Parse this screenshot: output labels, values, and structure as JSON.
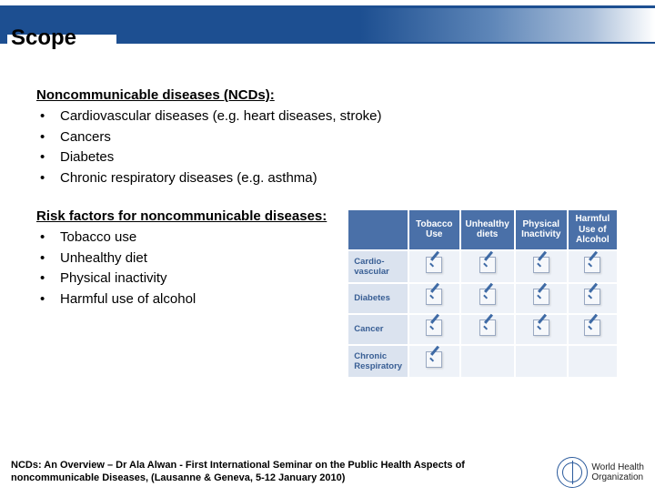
{
  "title": "Scope",
  "sections": {
    "ncds": {
      "heading": "Noncommunicable diseases (NCDs):",
      "items": [
        "Cardiovascular diseases (e.g. heart diseases, stroke)",
        "Cancers",
        "Diabetes",
        "Chronic respiratory diseases (e.g. asthma)"
      ]
    },
    "risk": {
      "heading": "Risk factors for noncommunicable diseases:",
      "items": [
        "Tobacco use",
        "Unhealthy diet",
        "Physical inactivity",
        "Harmful use of alcohol"
      ]
    }
  },
  "matrix": {
    "columns": [
      "Tobacco Use",
      "Unhealthy diets",
      "Physical Inactivity",
      "Harmful Use of Alcohol"
    ],
    "rows": [
      "Cardio-vascular",
      "Diabetes",
      "Cancer",
      "Chronic Respiratory"
    ],
    "cells": [
      [
        true,
        true,
        true,
        true
      ],
      [
        true,
        true,
        true,
        true
      ],
      [
        true,
        true,
        true,
        true
      ],
      [
        true,
        false,
        false,
        false
      ]
    ],
    "header_bg": "#4a70a8",
    "header_fg": "#ffffff",
    "rowhead_bg": "#dbe3ef",
    "rowhead_fg": "#385e94",
    "cell_bg": "#eef2f8",
    "check_color": "#3e6aa5",
    "border_color": "#ffffff",
    "font_size_pt": 8
  },
  "footer": {
    "citation": "NCDs: An Overview – Dr Ala Alwan - First International Seminar on the Public Health Aspects of noncommunicable Diseases, (Lausanne & Geneva, 5-12 January 2010)",
    "org_line1": "World Health",
    "org_line2": "Organization"
  },
  "colors": {
    "title_band": "#1d4f91",
    "who_blue": "#2a5a9c",
    "text": "#000000",
    "background": "#ffffff"
  },
  "typography": {
    "title_fontsize_pt": 18,
    "body_fontsize_pt": 11,
    "footer_fontsize_pt": 8,
    "font_family": "Arial"
  }
}
